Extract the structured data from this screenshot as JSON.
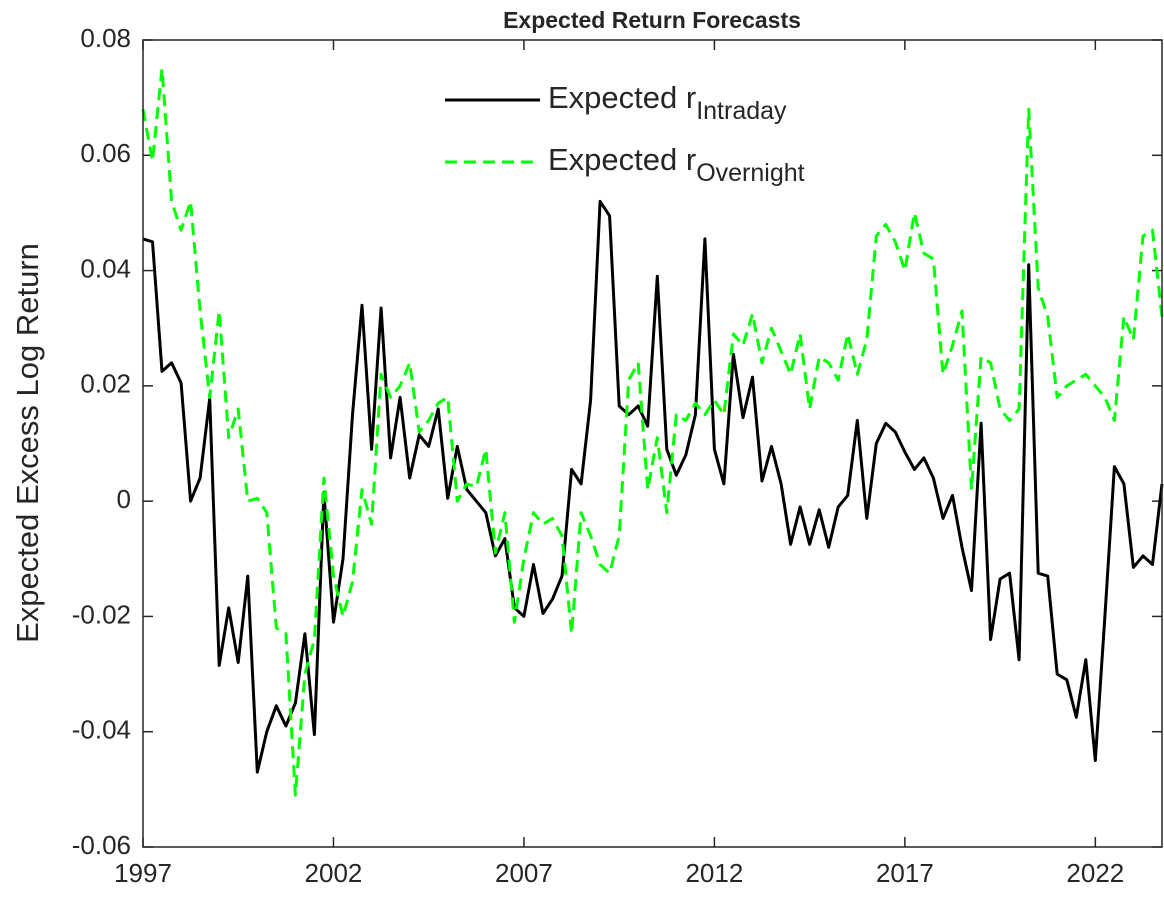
{
  "chart_data": {
    "type": "line",
    "title": "Expected Return Forecasts",
    "ylabel": "Expected Excess Log Return",
    "x": [
      1997,
      1997.25,
      1997.5,
      1997.75,
      1998,
      1998.25,
      1998.5,
      1998.75,
      1999,
      1999.25,
      1999.5,
      1999.75,
      2000,
      2000.25,
      2000.5,
      2000.75,
      2001,
      2001.25,
      2001.5,
      2001.75,
      2002,
      2002.25,
      2002.5,
      2002.75,
      2003,
      2003.25,
      2003.5,
      2003.75,
      2004,
      2004.25,
      2004.5,
      2004.75,
      2005,
      2005.25,
      2005.5,
      2005.75,
      2006,
      2006.25,
      2006.5,
      2006.75,
      2007,
      2007.25,
      2007.5,
      2007.75,
      2008,
      2008.25,
      2008.5,
      2008.75,
      2009,
      2009.25,
      2009.5,
      2009.75,
      2010,
      2010.25,
      2010.5,
      2010.75,
      2011,
      2011.25,
      2011.5,
      2011.75,
      2012,
      2012.25,
      2012.5,
      2012.75,
      2013,
      2013.25,
      2013.5,
      2013.75,
      2014,
      2014.25,
      2014.5,
      2014.75,
      2015,
      2015.25,
      2015.5,
      2015.75,
      2016,
      2016.25,
      2016.5,
      2016.75,
      2017,
      2017.25,
      2017.5,
      2017.75,
      2018,
      2018.25,
      2018.5,
      2018.75,
      2019,
      2019.25,
      2019.5,
      2019.75,
      2020,
      2020.25,
      2020.5,
      2020.75,
      2021,
      2021.25,
      2021.5,
      2021.75,
      2022,
      2022.25,
      2022.5,
      2022.75,
      2023,
      2023.25,
      2023.5,
      2023.75
    ],
    "series": [
      {
        "name": "Expected r_Intraday",
        "color": "#000000",
        "dash": false,
        "values": [
          0.0455,
          0.045,
          0.0225,
          0.024,
          0.0205,
          0.0,
          0.004,
          0.0178,
          -0.0285,
          -0.0185,
          -0.028,
          -0.013,
          -0.047,
          -0.04,
          -0.0355,
          -0.039,
          -0.035,
          -0.023,
          -0.0405,
          0.0015,
          -0.021,
          -0.01,
          0.015,
          0.034,
          0.009,
          0.0335,
          0.0075,
          0.018,
          0.004,
          0.0115,
          0.0095,
          0.016,
          0.0005,
          0.0095,
          0.002,
          0.0,
          -0.002,
          -0.0095,
          -0.0065,
          -0.0185,
          -0.02,
          -0.011,
          -0.0195,
          -0.017,
          -0.013,
          0.0055,
          0.003,
          0.0175,
          0.052,
          0.0495,
          0.0165,
          0.015,
          0.0165,
          0.013,
          0.039,
          0.009,
          0.0045,
          0.008,
          0.015,
          0.0455,
          0.009,
          0.003,
          0.0255,
          0.0145,
          0.0215,
          0.0035,
          0.0095,
          0.003,
          -0.0075,
          -0.001,
          -0.0075,
          -0.0015,
          -0.008,
          -0.001,
          0.001,
          0.014,
          -0.003,
          0.01,
          0.0135,
          0.012,
          0.0085,
          0.0055,
          0.0075,
          0.004,
          -0.003,
          0.001,
          -0.008,
          -0.0155,
          0.0135,
          -0.024,
          -0.0135,
          -0.0125,
          -0.0275,
          0.041,
          -0.0125,
          -0.013,
          -0.03,
          -0.031,
          -0.0375,
          -0.0275,
          -0.045,
          -0.02,
          0.006,
          0.003,
          -0.0115,
          -0.0095,
          -0.011,
          0.003
        ]
      },
      {
        "name": "Expected r_Overnight",
        "color": "#00ff00",
        "dash": true,
        "values": [
          0.068,
          0.059,
          0.075,
          0.052,
          0.047,
          0.052,
          0.033,
          0.018,
          0.033,
          0.011,
          0.016,
          0.0,
          0.0005,
          -0.002,
          -0.022,
          -0.023,
          -0.051,
          -0.03,
          -0.024,
          0.004,
          -0.013,
          -0.02,
          -0.014,
          0.002,
          -0.004,
          0.022,
          0.018,
          0.02,
          0.024,
          0.012,
          0.014,
          0.017,
          0.018,
          0.0,
          0.003,
          0.0025,
          0.009,
          -0.009,
          -0.002,
          -0.021,
          -0.01,
          -0.002,
          -0.004,
          -0.003,
          -0.006,
          -0.023,
          -0.002,
          -0.006,
          -0.011,
          -0.0125,
          -0.006,
          0.021,
          0.024,
          0.002,
          0.011,
          -0.002,
          0.015,
          0.014,
          0.017,
          0.015,
          0.0175,
          0.015,
          0.029,
          0.027,
          0.0325,
          0.024,
          0.03,
          0.026,
          0.022,
          0.029,
          0.016,
          0.025,
          0.024,
          0.021,
          0.029,
          0.022,
          0.028,
          0.046,
          0.048,
          0.045,
          0.04,
          0.05,
          0.043,
          0.042,
          0.022,
          0.027,
          0.033,
          0.002,
          0.025,
          0.024,
          0.016,
          0.014,
          0.016,
          0.068,
          0.037,
          0.032,
          0.018,
          0.02,
          0.021,
          0.022,
          0.02,
          0.018,
          0.014,
          0.032,
          0.028,
          0.046,
          0.047,
          0.032
        ]
      }
    ],
    "xlim": [
      1997,
      2023.75
    ],
    "xticks": [
      1997,
      2002,
      2007,
      2012,
      2017,
      2022
    ],
    "ylim": [
      -0.06,
      0.08
    ],
    "yticks": [
      -0.06,
      -0.04,
      -0.02,
      0,
      0.02,
      0.04,
      0.06,
      0.08
    ],
    "grid": false,
    "legend": "top"
  }
}
